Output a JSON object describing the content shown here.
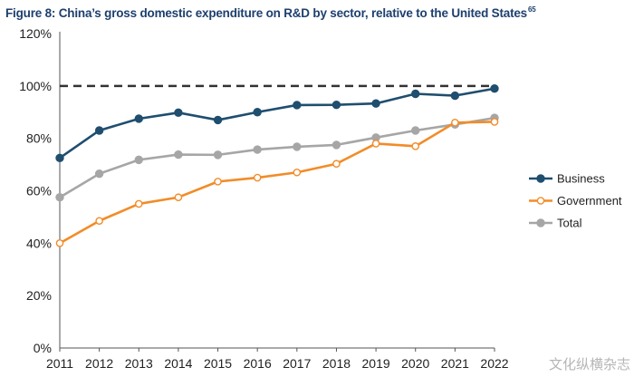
{
  "chart_data": {
    "type": "line",
    "title": "Figure 8: China’s gross domestic expenditure on R&D by sector, relative to the United States",
    "title_superscript": "65",
    "xlabel": "",
    "ylabel": "",
    "categories": [
      "2011",
      "2012",
      "2013",
      "2014",
      "2015",
      "2016",
      "2017",
      "2018",
      "2019",
      "2020",
      "2021",
      "2022"
    ],
    "ylim": [
      0,
      120
    ],
    "y_ticks": [
      0,
      20,
      40,
      60,
      80,
      100,
      120
    ],
    "y_tick_labels": [
      "0%",
      "20%",
      "40%",
      "60%",
      "80%",
      "100%",
      "120%"
    ],
    "reference_line": {
      "value": 100,
      "style": "dashed",
      "color": "#333333"
    },
    "grid": false,
    "legend_position": "right",
    "series": [
      {
        "name": "Business",
        "color": "#1f4e6e",
        "marker": "filled-circle",
        "values": [
          72.5,
          83,
          87.5,
          89.8,
          87,
          90,
          92.7,
          92.8,
          93.3,
          97,
          96.3,
          99
        ]
      },
      {
        "name": "Government",
        "color": "#f28c28",
        "marker": "hollow-circle",
        "values": [
          40,
          48.5,
          55,
          57.5,
          63.5,
          65,
          67,
          70.3,
          78,
          77,
          86,
          86.3
        ]
      },
      {
        "name": "Total",
        "color": "#a6a6a6",
        "marker": "filled-circle",
        "values": [
          57.5,
          66.5,
          71.8,
          73.8,
          73.7,
          75.7,
          76.8,
          77.5,
          80.3,
          83,
          85.3,
          87.8
        ]
      }
    ]
  },
  "watermark": "文化纵横杂志"
}
